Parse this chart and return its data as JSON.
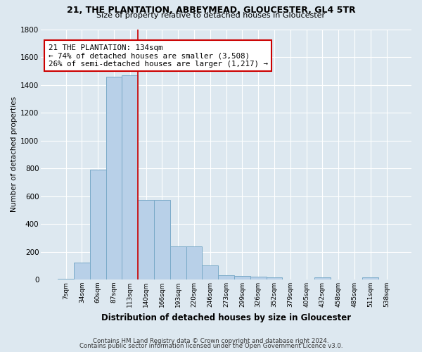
{
  "title1": "21, THE PLANTATION, ABBEYMEAD, GLOUCESTER, GL4 5TR",
  "title2": "Size of property relative to detached houses in Gloucester",
  "xlabel": "Distribution of detached houses by size in Gloucester",
  "ylabel": "Number of detached properties",
  "bar_labels": [
    "7sqm",
    "34sqm",
    "60sqm",
    "87sqm",
    "113sqm",
    "140sqm",
    "166sqm",
    "193sqm",
    "220sqm",
    "246sqm",
    "273sqm",
    "299sqm",
    "326sqm",
    "352sqm",
    "379sqm",
    "405sqm",
    "432sqm",
    "458sqm",
    "485sqm",
    "511sqm",
    "538sqm"
  ],
  "bar_values": [
    5,
    120,
    790,
    1460,
    1470,
    570,
    570,
    240,
    240,
    100,
    30,
    25,
    20,
    15,
    0,
    0,
    15,
    0,
    0,
    15,
    0
  ],
  "bar_color": "#b8d0e8",
  "bar_edge_color": "#7aaac8",
  "vline_pos": 4.5,
  "annotation_text": "21 THE PLANTATION: 134sqm\n← 74% of detached houses are smaller (3,508)\n26% of semi-detached houses are larger (1,217) →",
  "annotation_box_color": "#ffffff",
  "annotation_box_edge": "#cc0000",
  "vline_color": "#cc0000",
  "ylim": [
    0,
    1800
  ],
  "yticks": [
    0,
    200,
    400,
    600,
    800,
    1000,
    1200,
    1400,
    1600,
    1800
  ],
  "footer1": "Contains HM Land Registry data © Crown copyright and database right 2024.",
  "footer2": "Contains public sector information licensed under the Open Government Licence v3.0.",
  "bg_color": "#dde8f0",
  "plot_bg_color": "#dde8f0",
  "grid_color": "#ffffff"
}
